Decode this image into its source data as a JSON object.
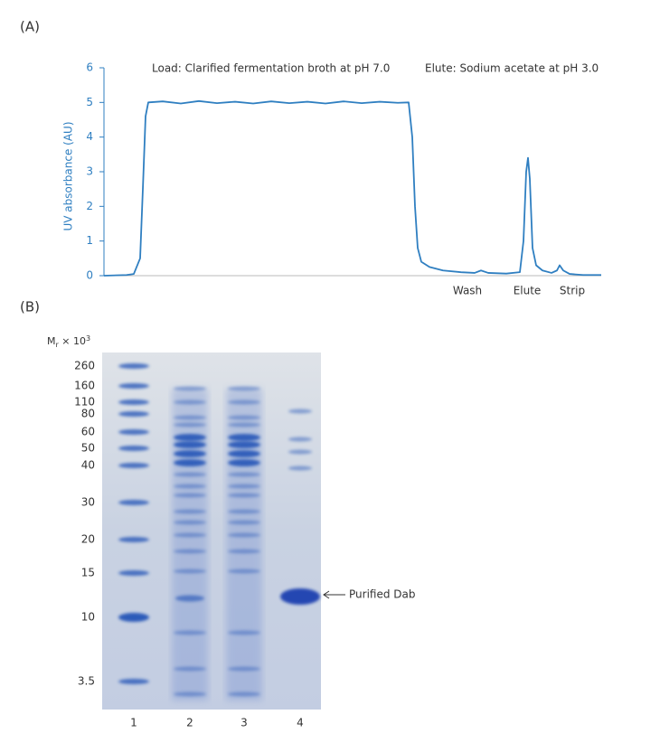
{
  "chart_data": {
    "type": "line",
    "panel_label": "(A)",
    "ylabel": "UV absorbance (AU)",
    "annotations": [
      "Load: Clarified fermentation broth at pH 7.0",
      "Elute: Sodium acetate at pH 3.0"
    ],
    "phase_labels": [
      "Wash",
      "Elute",
      "Strip"
    ],
    "xlim": [
      0,
      550
    ],
    "ylim": [
      0,
      6
    ],
    "yticks": [
      0,
      1,
      2,
      3,
      4,
      5,
      6
    ],
    "x": [
      0,
      25,
      33,
      40,
      43,
      46,
      49,
      65,
      85,
      105,
      125,
      145,
      165,
      185,
      205,
      225,
      245,
      265,
      285,
      305,
      325,
      337,
      341,
      344,
      347,
      351,
      360,
      375,
      395,
      410,
      417,
      425,
      445,
      460,
      464,
      467,
      469,
      471,
      474,
      478,
      485,
      495,
      501,
      504,
      508,
      515,
      530,
      550
    ],
    "series": [
      {
        "color": "#2f7fc1",
        "values": [
          0,
          0.02,
          0.05,
          0.5,
          2.5,
          4.6,
          5.0,
          5.03,
          4.97,
          5.04,
          4.98,
          5.02,
          4.97,
          5.03,
          4.98,
          5.02,
          4.97,
          5.03,
          4.98,
          5.02,
          4.99,
          5.0,
          4.0,
          2.0,
          0.8,
          0.4,
          0.25,
          0.15,
          0.1,
          0.08,
          0.15,
          0.08,
          0.06,
          0.1,
          1.0,
          3.0,
          3.4,
          2.8,
          0.8,
          0.3,
          0.15,
          0.08,
          0.15,
          0.3,
          0.15,
          0.05,
          0.02,
          0.02
        ]
      }
    ]
  },
  "gel": {
    "panel_label": "(B)",
    "axis_title": {
      "symbol": "M",
      "subscript": "r",
      "text": " × 10",
      "superscript": "3"
    },
    "markers": [
      260,
      160,
      110,
      80,
      60,
      50,
      40,
      30,
      20,
      15,
      10,
      3.5
    ],
    "lanes": [
      "1",
      "2",
      "3",
      "4"
    ],
    "annotation": "Purified Dab"
  }
}
